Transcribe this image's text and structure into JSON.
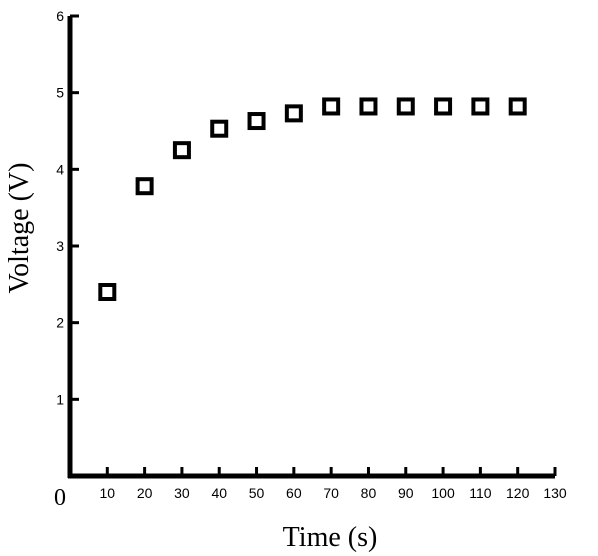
{
  "chart_data": {
    "type": "scatter",
    "title": "",
    "xlabel": "Time (s)",
    "ylabel": "Voltage (V)",
    "xlim": [
      0,
      130
    ],
    "ylim": [
      0,
      6
    ],
    "x_ticks": [
      10,
      20,
      30,
      40,
      50,
      60,
      70,
      80,
      90,
      100,
      110,
      120,
      130
    ],
    "y_ticks": [
      1,
      2,
      3,
      4,
      5,
      6
    ],
    "origin_label": "0",
    "grid": false,
    "legend": "none",
    "marker": "hollow-square",
    "marker_color": "#000000",
    "series": [
      {
        "x": [
          10,
          20,
          30,
          40,
          50,
          60,
          70,
          80,
          90,
          100,
          110,
          120
        ],
        "y": [
          2.4,
          3.78,
          4.25,
          4.53,
          4.63,
          4.73,
          4.82,
          4.82,
          4.82,
          4.82,
          4.82,
          4.82
        ]
      }
    ]
  }
}
